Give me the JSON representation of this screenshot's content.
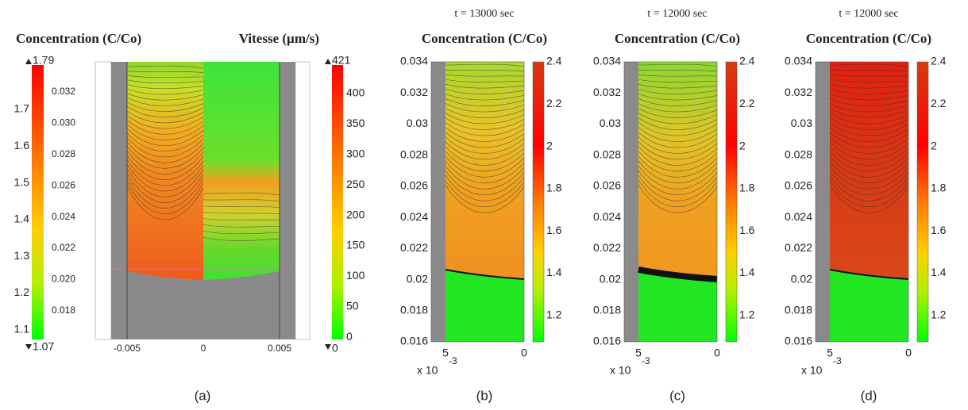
{
  "panel_a": {
    "left_title": "Concentration (C/Co)",
    "right_title": "Vitesse (µm/s)",
    "left_colorbar": {
      "max_label": "1.79",
      "min_label": "1.07",
      "ticks": [
        "1.7",
        "1.6",
        "1.5",
        "1.4",
        "1.3",
        "1.2",
        "1.1"
      ]
    },
    "inner_yticks": [
      "0.032",
      "0.030",
      "0.028",
      "0.026",
      "0.024",
      "0.022",
      "0.020",
      "0.018"
    ],
    "xticks": [
      "-0.005",
      "0",
      "0.005"
    ],
    "right_colorbar": {
      "max_label": "421",
      "min_label": "0",
      "ticks": [
        "400",
        "350",
        "300",
        "250",
        "200",
        "150",
        "100",
        "50",
        "0"
      ]
    },
    "caption": "(a)"
  },
  "panels": [
    {
      "time": "t = 13000 sec",
      "title": "Concentration (C/Co)",
      "yticks": [
        "0.034",
        "0.032",
        "0.03",
        "0.028",
        "0.026",
        "0.024",
        "0.022",
        "0.02",
        "0.018",
        "0.016"
      ],
      "xticks": [
        "5",
        "0"
      ],
      "x_multiplier": "x 10",
      "x_exponent": "-3",
      "colorbar_ticks": [
        "2.4",
        "2.2",
        "2",
        "1.8",
        "1.6",
        "1.4",
        "1.2"
      ],
      "caption": "(b)"
    },
    {
      "time": "t = 12000 sec",
      "title": "Concentration (C/Co)",
      "yticks": [
        "0.034",
        "0.032",
        "0.03",
        "0.028",
        "0.026",
        "0.024",
        "0.022",
        "0.02",
        "0.018",
        "0.016"
      ],
      "xticks": [
        "5",
        "0"
      ],
      "x_multiplier": "x 10",
      "x_exponent": "-3",
      "colorbar_ticks": [
        "2.4",
        "2.2",
        "2",
        "1.8",
        "1.6",
        "1.4",
        "1.2"
      ],
      "caption": "(c)"
    },
    {
      "time": "t = 12000 sec",
      "title": "Concentration (C/Co)",
      "yticks": [
        "0.034",
        "0.032",
        "0.03",
        "0.028",
        "0.026",
        "0.024",
        "0.022",
        "0.02",
        "0.018",
        "0.016"
      ],
      "xticks": [
        "5",
        "0"
      ],
      "x_multiplier": "x 10",
      "x_exponent": "-3",
      "colorbar_ticks": [
        "2.4",
        "2.2",
        "2",
        "1.8",
        "1.6",
        "1.4",
        "1.2"
      ],
      "caption": "(d)"
    }
  ]
}
